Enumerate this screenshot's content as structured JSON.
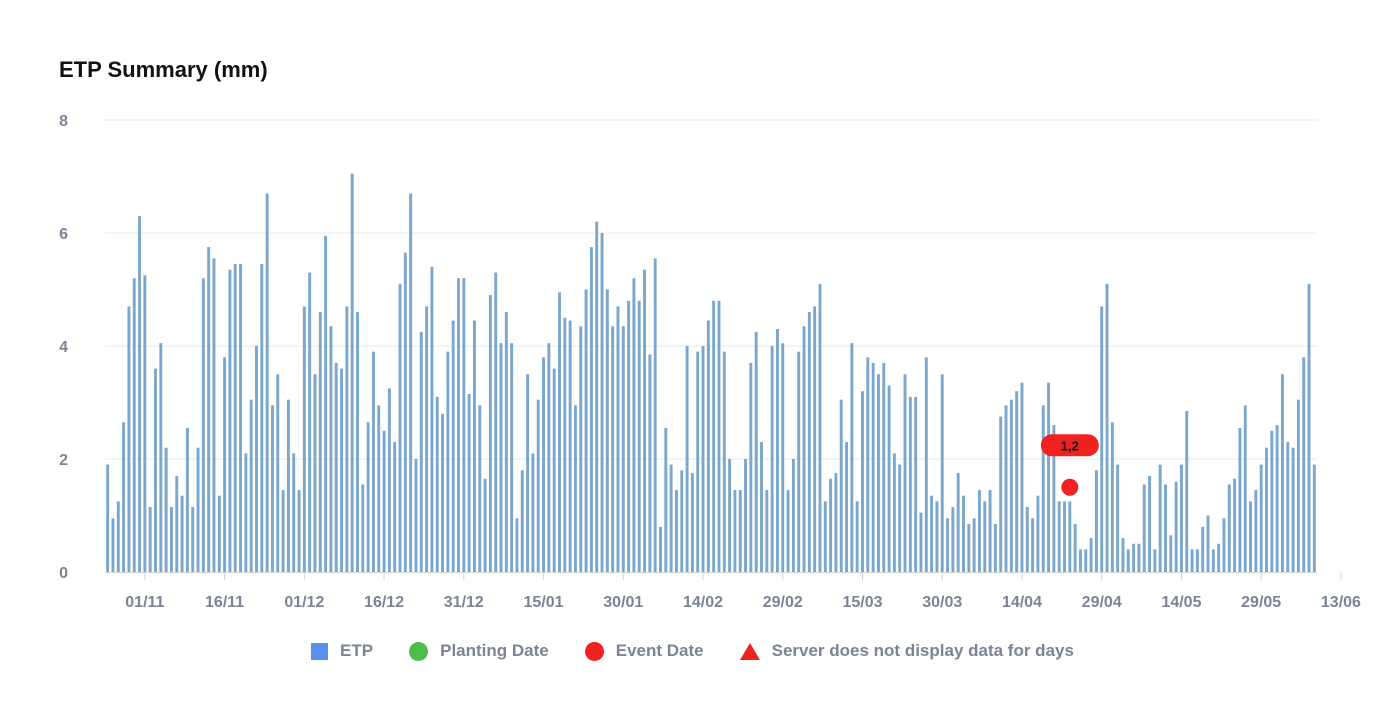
{
  "title": "ETP Summary (mm)",
  "colors": {
    "bar": "#7aa7cb",
    "grid": "#e6e8eb",
    "axis_text": "#7b8494",
    "legend_etp": "#5b8fe8",
    "planting": "#4cbc4a",
    "event": "#ef2121",
    "missing": "#ef2121"
  },
  "legend": [
    {
      "label": "ETP",
      "marker": "square",
      "color": "#5b8fe8"
    },
    {
      "label": "Planting Date",
      "marker": "circle",
      "color": "#4cbc4a"
    },
    {
      "label": "Event Date",
      "marker": "circle",
      "color": "#ef2121"
    },
    {
      "label": "Server does not display data for days",
      "marker": "triangle",
      "color": "#ef2121"
    }
  ],
  "chart_data": {
    "type": "bar",
    "title": "ETP Summary (mm)",
    "xlabel": "",
    "ylabel": "",
    "ylim": [
      0,
      8
    ],
    "yticks": [
      0,
      2,
      4,
      6,
      8
    ],
    "grid": true,
    "legend_placement": "bottom",
    "x_start": "25/10",
    "x_end": "17/06",
    "xtick_labels": [
      "01/11",
      "16/11",
      "01/12",
      "16/12",
      "31/12",
      "15/01",
      "30/01",
      "14/02",
      "29/02",
      "15/03",
      "30/03",
      "14/04",
      "29/04",
      "14/05",
      "29/05",
      "13/06"
    ],
    "series": [
      {
        "name": "ETP",
        "values": [
          1.9,
          0.95,
          1.25,
          2.65,
          4.7,
          5.2,
          6.3,
          5.25,
          1.15,
          3.6,
          4.05,
          2.2,
          1.15,
          1.7,
          1.35,
          2.55,
          1.15,
          2.2,
          5.2,
          5.75,
          5.55,
          1.35,
          3.8,
          5.35,
          5.45,
          5.45,
          2.1,
          3.05,
          4.0,
          5.45,
          6.7,
          2.95,
          3.5,
          1.45,
          3.05,
          2.1,
          1.45,
          4.7,
          5.3,
          3.5,
          4.6,
          5.95,
          4.35,
          3.7,
          3.6,
          4.7,
          7.05,
          4.6,
          1.55,
          2.65,
          3.9,
          2.95,
          2.5,
          3.25,
          2.3,
          5.1,
          5.65,
          6.7,
          2.0,
          4.25,
          4.7,
          5.4,
          3.1,
          2.8,
          3.9,
          4.45,
          5.2,
          5.2,
          3.15,
          4.45,
          2.95,
          1.65,
          4.9,
          5.3,
          4.05,
          4.6,
          4.05,
          0.95,
          1.8,
          3.5,
          2.1,
          3.05,
          3.8,
          4.05,
          3.6,
          4.95,
          4.5,
          4.45,
          2.95,
          4.35,
          5.0,
          5.75,
          6.2,
          6.0,
          5.0,
          4.35,
          4.7,
          4.35,
          4.8,
          5.2,
          4.8,
          5.35,
          3.85,
          5.55,
          0.8,
          2.55,
          1.9,
          1.45,
          1.8,
          4.0,
          1.75,
          3.9,
          4.0,
          4.45,
          4.8,
          4.8,
          3.9,
          2.0,
          1.45,
          1.45,
          2.0,
          3.7,
          4.25,
          2.3,
          1.45,
          4.0,
          4.3,
          4.05,
          1.45,
          2.0,
          3.9,
          4.35,
          4.6,
          4.7,
          5.1,
          1.25,
          1.65,
          1.75,
          3.05,
          2.3,
          4.05,
          1.25,
          3.2,
          3.8,
          3.7,
          3.5,
          3.7,
          3.3,
          2.1,
          1.9,
          3.5,
          3.1,
          3.1,
          1.05,
          3.8,
          1.35,
          1.25,
          3.5,
          0.95,
          1.15,
          1.75,
          1.35,
          0.85,
          0.95,
          1.45,
          1.25,
          1.45,
          0.85,
          2.75,
          2.95,
          3.05,
          3.2,
          3.35,
          1.15,
          0.95,
          1.35,
          2.95,
          3.35,
          2.6,
          1.25,
          1.25,
          1.25,
          0.85,
          0.4,
          0.4,
          0.6,
          1.8,
          4.7,
          5.1,
          2.65,
          1.9,
          0.6,
          0.4,
          0.5,
          0.5,
          1.55,
          1.7,
          0.4,
          1.9,
          1.55,
          0.65,
          1.6,
          1.9,
          2.85,
          0.4,
          0.4,
          0.8,
          1.0,
          0.4,
          0.5,
          0.95,
          1.55,
          1.65,
          2.55,
          2.95,
          1.25,
          1.45,
          1.9,
          2.2,
          2.5,
          2.6,
          3.5,
          2.3,
          2.2,
          3.05,
          3.8,
          5.1,
          1.9
        ]
      }
    ],
    "event_date": {
      "date": "23/04",
      "value": 1.5,
      "label": "1,2"
    }
  }
}
